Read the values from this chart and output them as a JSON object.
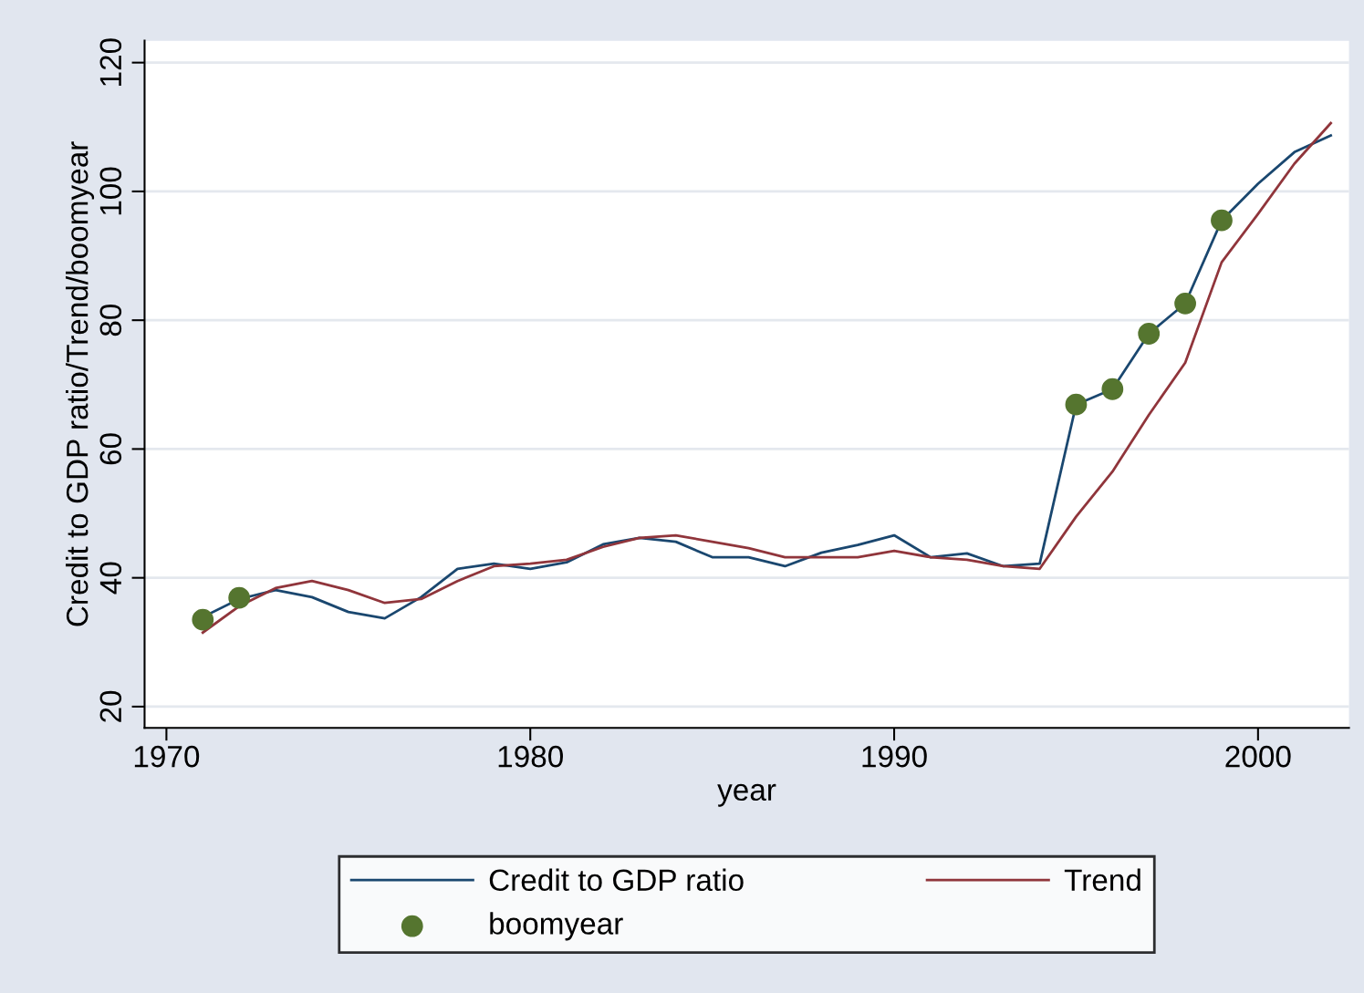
{
  "chart_data": {
    "type": "line",
    "xlabel": "year",
    "ylabel": "Credit to GDP ratio/Trend/boomyear",
    "x": [
      1971,
      1972,
      1973,
      1974,
      1975,
      1976,
      1977,
      1978,
      1979,
      1980,
      1981,
      1982,
      1983,
      1984,
      1985,
      1986,
      1987,
      1988,
      1989,
      1990,
      1991,
      1992,
      1993,
      1994,
      1995,
      1996,
      1997,
      1998,
      1999,
      2000,
      2001,
      2002
    ],
    "series": [
      {
        "name": "Credit to GDP ratio",
        "color": "#1a476f",
        "values": [
          33.9,
          36.7,
          38.1,
          37.0,
          34.7,
          33.7,
          37.0,
          41.4,
          42.2,
          41.4,
          42.4,
          45.2,
          46.2,
          45.6,
          43.2,
          43.2,
          41.8,
          43.9,
          45.1,
          46.6,
          43.2,
          43.8,
          41.8,
          42.2,
          66.9,
          69.3,
          77.9,
          82.6,
          95.5,
          101.2,
          106.1,
          108.7
        ]
      },
      {
        "name": "Trend",
        "color": "#90353b",
        "values": [
          31.5,
          35.6,
          38.4,
          39.5,
          38.1,
          36.1,
          36.7,
          39.5,
          41.8,
          42.2,
          42.8,
          44.8,
          46.2,
          46.6,
          45.6,
          44.6,
          43.2,
          43.2,
          43.2,
          44.2,
          43.2,
          42.8,
          41.8,
          41.4,
          49.5,
          56.5,
          65.3,
          73.4,
          89.0,
          96.5,
          104.3,
          110.6
        ]
      },
      {
        "name": "boomyear",
        "type": "scatter",
        "marker": "circle",
        "color": "#55752f",
        "x": [
          1971,
          1972,
          1995,
          1996,
          1997,
          1998,
          1999
        ],
        "values": [
          33.5,
          36.9,
          66.9,
          69.3,
          77.9,
          82.6,
          95.5
        ]
      }
    ],
    "xlim": [
      1969.4,
      2002.5
    ],
    "xticks": [
      1970,
      1980,
      1990,
      2000
    ],
    "ylim": [
      16.7,
      123.4
    ],
    "yticks": [
      20,
      40,
      60,
      80,
      100,
      120
    ],
    "grid": "y",
    "legend": "bottom"
  }
}
